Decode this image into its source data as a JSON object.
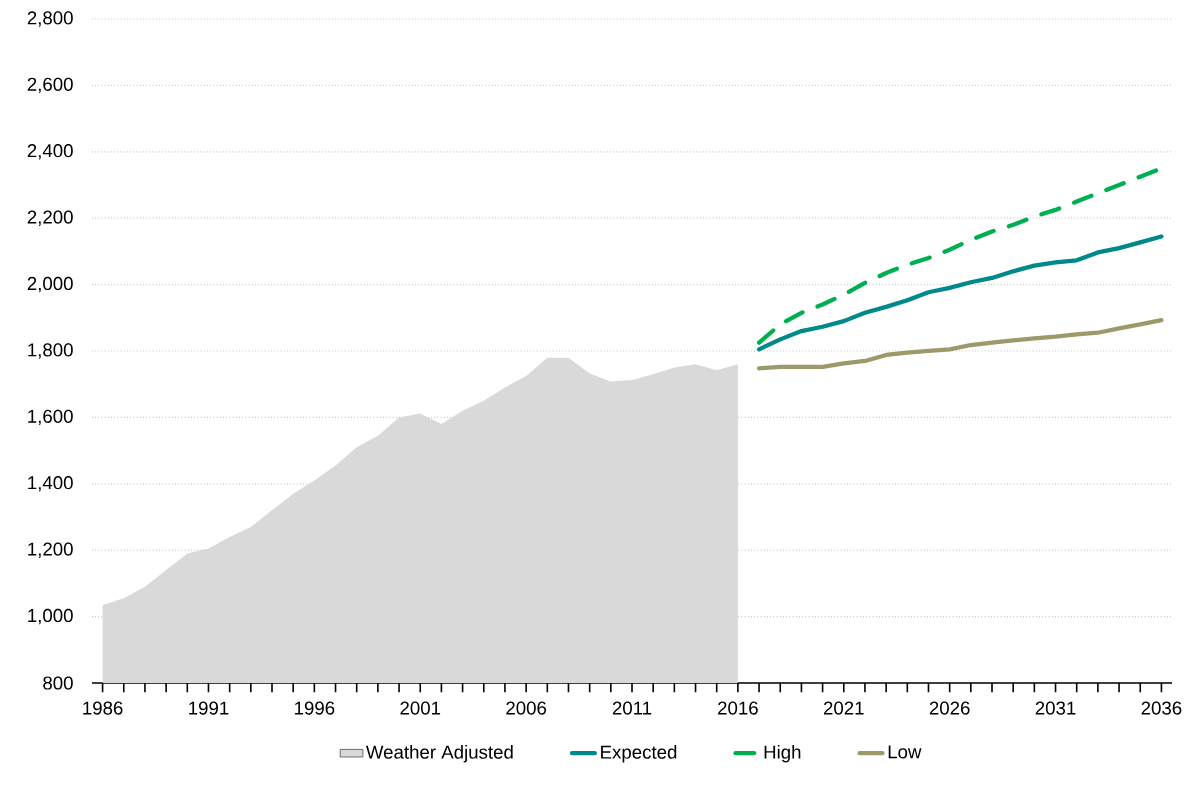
{
  "chart_data": {
    "type": "line",
    "xlim": [
      1985.5,
      2036.5
    ],
    "xticks": [
      1986,
      1991,
      1996,
      2001,
      2006,
      2011,
      2016,
      2021,
      2026,
      2031,
      2036
    ],
    "ylim": [
      800,
      2800
    ],
    "yticks": [
      {
        "value": 800,
        "label": "800"
      },
      {
        "value": 1000,
        "label": "1,000"
      },
      {
        "value": 1200,
        "label": "1,200"
      },
      {
        "value": 1400,
        "label": "1,400"
      },
      {
        "value": 1600,
        "label": "1,600"
      },
      {
        "value": 1800,
        "label": "1,800"
      },
      {
        "value": 2000,
        "label": "2,000"
      },
      {
        "value": 2200,
        "label": "2,200"
      },
      {
        "value": 2400,
        "label": "2,400"
      },
      {
        "value": 2600,
        "label": "2,600"
      },
      {
        "value": 2800,
        "label": "2,800"
      }
    ],
    "grid": "y",
    "legend": "bottom",
    "line_style": "solid",
    "marker": "none",
    "series": [
      {
        "name": "Weather Adjusted",
        "type": "area",
        "color": "#d9d9d9",
        "x": [
          1986,
          1987,
          1988,
          1989,
          1990,
          1991,
          1992,
          1993,
          1994,
          1995,
          1996,
          1997,
          1998,
          1999,
          2000,
          2001,
          2002,
          2003,
          2004,
          2005,
          2006,
          2007,
          2008,
          2009,
          2010,
          2011,
          2012,
          2013,
          2014,
          2015,
          2016
        ],
        "values": [
          1035,
          1055,
          1090,
          1140,
          1190,
          1205,
          1240,
          1270,
          1320,
          1370,
          1410,
          1455,
          1510,
          1545,
          1600,
          1612,
          1580,
          1620,
          1650,
          1690,
          1725,
          1780,
          1780,
          1732,
          1708,
          1713,
          1730,
          1750,
          1760,
          1742,
          1760
        ]
      },
      {
        "name": "Expected",
        "color": "#00898a",
        "x": [
          2017,
          2018,
          2019,
          2020,
          2021,
          2022,
          2023,
          2024,
          2025,
          2026,
          2027,
          2028,
          2029,
          2030,
          2031,
          2032,
          2033,
          2034,
          2035,
          2036
        ],
        "values": [
          1805,
          1835,
          1860,
          1873,
          1890,
          1915,
          1933,
          1953,
          1977,
          1990,
          2007,
          2020,
          2040,
          2057,
          2067,
          2073,
          2097,
          2110,
          2127,
          2145
        ]
      },
      {
        "name": "High",
        "color": "#00b050",
        "line_style": "dashed",
        "x": [
          2017,
          2018,
          2019,
          2020,
          2021,
          2022,
          2023,
          2024,
          2025,
          2026,
          2027,
          2028,
          2029,
          2030,
          2031,
          2032,
          2033,
          2034,
          2035,
          2036
        ],
        "values": [
          1825,
          1880,
          1915,
          1940,
          1970,
          2005,
          2035,
          2060,
          2080,
          2105,
          2135,
          2160,
          2180,
          2205,
          2225,
          2250,
          2275,
          2300,
          2325,
          2350
        ]
      },
      {
        "name": "Low",
        "color": "#9c9a6a",
        "x": [
          2017,
          2018,
          2019,
          2020,
          2021,
          2022,
          2023,
          2024,
          2025,
          2026,
          2027,
          2028,
          2029,
          2030,
          2031,
          2032,
          2033,
          2034,
          2035,
          2036
        ],
        "values": [
          1748,
          1752,
          1752,
          1752,
          1763,
          1770,
          1788,
          1795,
          1800,
          1805,
          1818,
          1825,
          1832,
          1838,
          1843,
          1850,
          1855,
          1868,
          1880,
          1893
        ]
      }
    ]
  }
}
